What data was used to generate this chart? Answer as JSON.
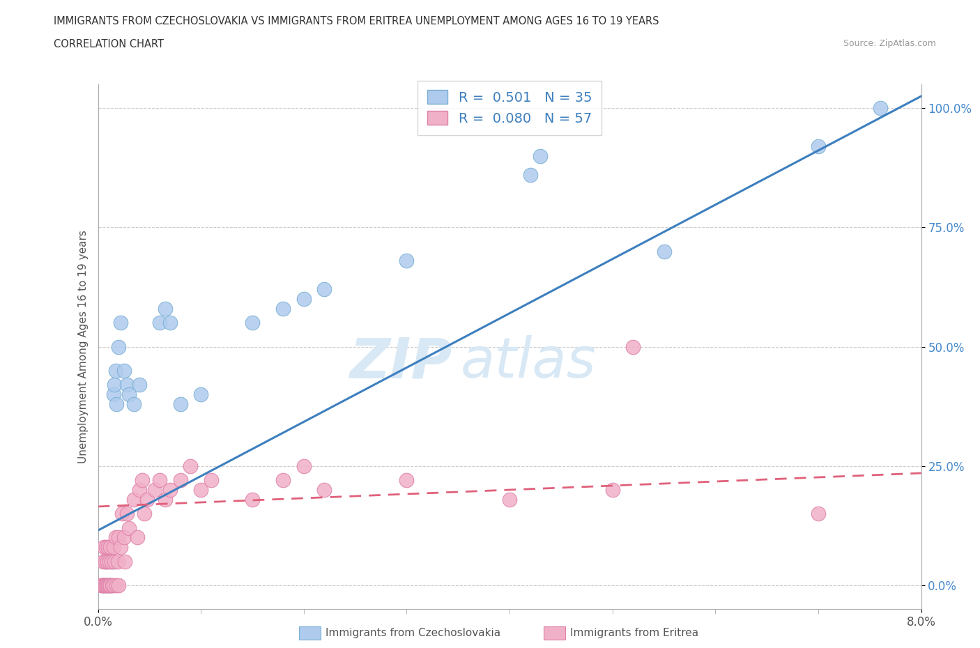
{
  "title_line1": "IMMIGRANTS FROM CZECHOSLOVAKIA VS IMMIGRANTS FROM ERITREA UNEMPLOYMENT AMONG AGES 16 TO 19 YEARS",
  "title_line2": "CORRELATION CHART",
  "source_text": "Source: ZipAtlas.com",
  "ylabel": "Unemployment Among Ages 16 to 19 years",
  "xlim": [
    0.0,
    0.08
  ],
  "ylim": [
    -0.05,
    1.05
  ],
  "ytick_values": [
    0.0,
    0.25,
    0.5,
    0.75,
    1.0
  ],
  "ytick_labels": [
    "0.0%",
    "25.0%",
    "50.0%",
    "75.0%",
    "100.0%"
  ],
  "xtick_values": [
    0.0,
    0.08
  ],
  "xtick_labels": [
    "0.0%",
    "8.0%"
  ],
  "czech_R": 0.501,
  "czech_N": 35,
  "eritrea_R": 0.08,
  "eritrea_N": 57,
  "czech_color": "#aecbee",
  "eritrea_color": "#f0b0c8",
  "czech_edge_color": "#7aafd4",
  "eritrea_edge_color": "#e080a8",
  "czech_line_color": "#3d7fbf",
  "eritrea_line_color": "#e0607a",
  "legend_label_color": "#3d7fbf",
  "ytick_color": "#4488cc",
  "xtick_color": "#555555",
  "ylabel_color": "#555555",
  "grid_color": "#cccccc",
  "spine_color": "#aaaaaa",
  "watermark_color": "#d8e8f5",
  "background_color": "#ffffff",
  "czech_x": [
    0.0004,
    0.0005,
    0.0006,
    0.0008,
    0.0009,
    0.001,
    0.0012,
    0.0013,
    0.0014,
    0.0015,
    0.0016,
    0.0017,
    0.0018,
    0.002,
    0.0022,
    0.0025,
    0.0028,
    0.003,
    0.0035,
    0.004,
    0.006,
    0.0065,
    0.007,
    0.008,
    0.01,
    0.015,
    0.018,
    0.02,
    0.022,
    0.03,
    0.042,
    0.043,
    0.055,
    0.07,
    0.076
  ],
  "czech_y": [
    0.0,
    0.0,
    0.0,
    0.05,
    0.0,
    0.0,
    0.0,
    0.0,
    0.05,
    0.4,
    0.42,
    0.45,
    0.38,
    0.5,
    0.55,
    0.45,
    0.42,
    0.4,
    0.38,
    0.42,
    0.55,
    0.58,
    0.55,
    0.38,
    0.4,
    0.55,
    0.58,
    0.6,
    0.62,
    0.68,
    0.86,
    0.9,
    0.7,
    0.92,
    1.0
  ],
  "eritrea_x": [
    0.0003,
    0.0004,
    0.0005,
    0.0005,
    0.0006,
    0.0006,
    0.0007,
    0.0007,
    0.0008,
    0.0008,
    0.0009,
    0.0009,
    0.001,
    0.001,
    0.0011,
    0.0011,
    0.0012,
    0.0012,
    0.0013,
    0.0014,
    0.0015,
    0.0015,
    0.0016,
    0.0017,
    0.0018,
    0.0019,
    0.002,
    0.002,
    0.0022,
    0.0023,
    0.0025,
    0.0026,
    0.0028,
    0.003,
    0.0035,
    0.0038,
    0.004,
    0.0043,
    0.0045,
    0.0048,
    0.0055,
    0.006,
    0.0065,
    0.007,
    0.008,
    0.009,
    0.01,
    0.011,
    0.015,
    0.018,
    0.02,
    0.022,
    0.03,
    0.04,
    0.05,
    0.052,
    0.07
  ],
  "eritrea_y": [
    0.0,
    0.0,
    0.0,
    0.05,
    0.0,
    0.08,
    0.0,
    0.05,
    0.0,
    0.08,
    0.0,
    0.05,
    0.0,
    0.08,
    0.0,
    0.05,
    0.0,
    0.08,
    0.05,
    0.0,
    0.0,
    0.08,
    0.05,
    0.1,
    0.0,
    0.05,
    0.0,
    0.1,
    0.08,
    0.15,
    0.1,
    0.05,
    0.15,
    0.12,
    0.18,
    0.1,
    0.2,
    0.22,
    0.15,
    0.18,
    0.2,
    0.22,
    0.18,
    0.2,
    0.22,
    0.25,
    0.2,
    0.22,
    0.18,
    0.22,
    0.25,
    0.2,
    0.22,
    0.18,
    0.2,
    0.5,
    0.15
  ],
  "czech_line_x": [
    0.0,
    0.08
  ],
  "czech_line_y": [
    0.115,
    1.025
  ],
  "eritrea_line_x": [
    0.0,
    0.08
  ],
  "eritrea_line_y": [
    0.165,
    0.235
  ]
}
